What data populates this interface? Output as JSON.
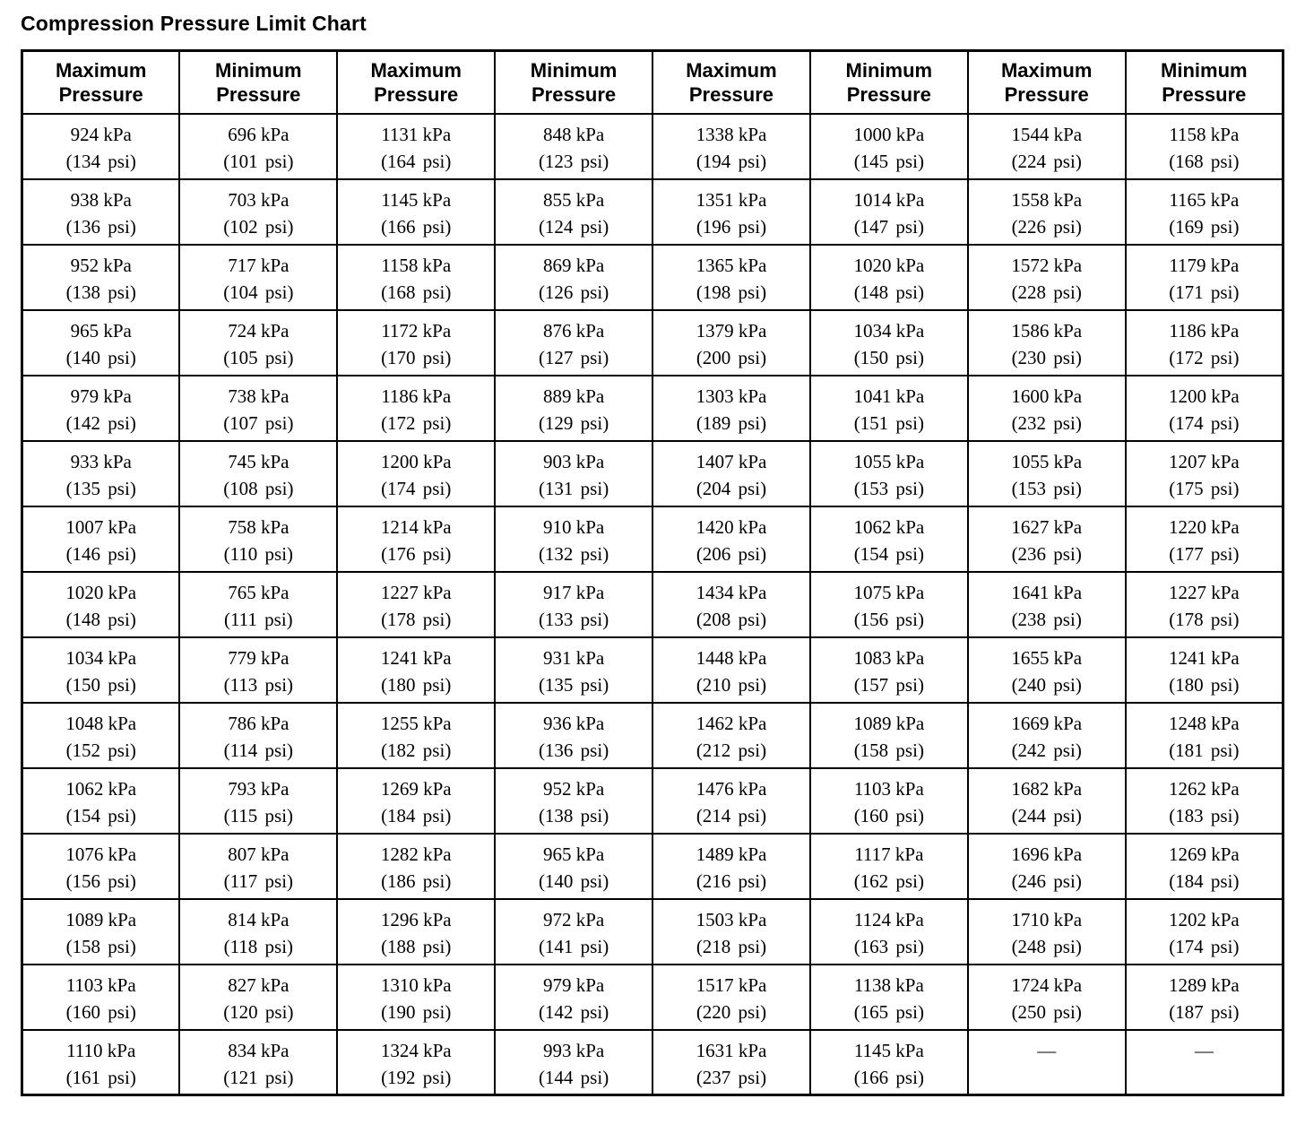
{
  "title": "Compression Pressure Limit Chart",
  "table": {
    "headers": [
      "Maximum Pressure",
      "Minimum Pressure",
      "Maximum Pressure",
      "Minimum Pressure",
      "Maximum Pressure",
      "Minimum Pressure",
      "Maximum Pressure",
      "Minimum Pressure"
    ],
    "rows": [
      [
        {
          "kpa": "924 kPa",
          "psi": "(134 psi)"
        },
        {
          "kpa": "696 kPa",
          "psi": "(101 psi)"
        },
        {
          "kpa": "1131 kPa",
          "psi": "(164 psi)"
        },
        {
          "kpa": "848 kPa",
          "psi": "(123 psi)"
        },
        {
          "kpa": "1338 kPa",
          "psi": "(194 psi)"
        },
        {
          "kpa": "1000 kPa",
          "psi": "(145 psi)"
        },
        {
          "kpa": "1544 kPa",
          "psi": "(224 psi)"
        },
        {
          "kpa": "1158 kPa",
          "psi": "(168 psi)"
        }
      ],
      [
        {
          "kpa": "938 kPa",
          "psi": "(136 psi)"
        },
        {
          "kpa": "703 kPa",
          "psi": "(102 psi)"
        },
        {
          "kpa": "1145 kPa",
          "psi": "(166 psi)"
        },
        {
          "kpa": "855 kPa",
          "psi": "(124 psi)"
        },
        {
          "kpa": "1351 kPa",
          "psi": "(196 psi)"
        },
        {
          "kpa": "1014 kPa",
          "psi": "(147 psi)"
        },
        {
          "kpa": "1558 kPa",
          "psi": "(226 psi)"
        },
        {
          "kpa": "1165 kPa",
          "psi": "(169 psi)"
        }
      ],
      [
        {
          "kpa": "952 kPa",
          "psi": "(138 psi)"
        },
        {
          "kpa": "717 kPa",
          "psi": "(104 psi)"
        },
        {
          "kpa": "1158 kPa",
          "psi": "(168 psi)"
        },
        {
          "kpa": "869 kPa",
          "psi": "(126 psi)"
        },
        {
          "kpa": "1365 kPa",
          "psi": "(198 psi)"
        },
        {
          "kpa": "1020 kPa",
          "psi": "(148 psi)"
        },
        {
          "kpa": "1572 kPa",
          "psi": "(228 psi)"
        },
        {
          "kpa": "1179 kPa",
          "psi": "(171 psi)"
        }
      ],
      [
        {
          "kpa": "965 kPa",
          "psi": "(140 psi)"
        },
        {
          "kpa": "724 kPa",
          "psi": "(105 psi)"
        },
        {
          "kpa": "1172 kPa",
          "psi": "(170 psi)"
        },
        {
          "kpa": "876 kPa",
          "psi": "(127 psi)"
        },
        {
          "kpa": "1379 kPa",
          "psi": "(200 psi)"
        },
        {
          "kpa": "1034 kPa",
          "psi": "(150 psi)"
        },
        {
          "kpa": "1586 kPa",
          "psi": "(230 psi)"
        },
        {
          "kpa": "1186 kPa",
          "psi": "(172 psi)"
        }
      ],
      [
        {
          "kpa": "979 kPa",
          "psi": "(142 psi)"
        },
        {
          "kpa": "738 kPa",
          "psi": "(107 psi)"
        },
        {
          "kpa": "1186 kPa",
          "psi": "(172 psi)"
        },
        {
          "kpa": "889 kPa",
          "psi": "(129 psi)"
        },
        {
          "kpa": "1303 kPa",
          "psi": "(189 psi)"
        },
        {
          "kpa": "1041 kPa",
          "psi": "(151 psi)"
        },
        {
          "kpa": "1600 kPa",
          "psi": "(232 psi)"
        },
        {
          "kpa": "1200 kPa",
          "psi": "(174 psi)"
        }
      ],
      [
        {
          "kpa": "933 kPa",
          "psi": "(135 psi)"
        },
        {
          "kpa": "745 kPa",
          "psi": "(108 psi)"
        },
        {
          "kpa": "1200 kPa",
          "psi": "(174 psi)"
        },
        {
          "kpa": "903 kPa",
          "psi": "(131 psi)"
        },
        {
          "kpa": "1407 kPa",
          "psi": "(204 psi)"
        },
        {
          "kpa": "1055 kPa",
          "psi": "(153 psi)"
        },
        {
          "kpa": "1055 kPa",
          "psi": "(153 psi)"
        },
        {
          "kpa": "1207 kPa",
          "psi": "(175 psi)"
        }
      ],
      [
        {
          "kpa": "1007 kPa",
          "psi": "(146 psi)"
        },
        {
          "kpa": "758 kPa",
          "psi": "(110 psi)"
        },
        {
          "kpa": "1214 kPa",
          "psi": "(176 psi)"
        },
        {
          "kpa": "910 kPa",
          "psi": "(132 psi)"
        },
        {
          "kpa": "1420 kPa",
          "psi": "(206 psi)"
        },
        {
          "kpa": "1062 kPa",
          "psi": "(154 psi)"
        },
        {
          "kpa": "1627 kPa",
          "psi": "(236 psi)"
        },
        {
          "kpa": "1220 kPa",
          "psi": "(177 psi)"
        }
      ],
      [
        {
          "kpa": "1020 kPa",
          "psi": "(148 psi)"
        },
        {
          "kpa": "765 kPa",
          "psi": "(111 psi)"
        },
        {
          "kpa": "1227 kPa",
          "psi": "(178 psi)"
        },
        {
          "kpa": "917 kPa",
          "psi": "(133 psi)"
        },
        {
          "kpa": "1434 kPa",
          "psi": "(208 psi)"
        },
        {
          "kpa": "1075 kPa",
          "psi": "(156 psi)"
        },
        {
          "kpa": "1641 kPa",
          "psi": "(238 psi)"
        },
        {
          "kpa": "1227 kPa",
          "psi": "(178 psi)"
        }
      ],
      [
        {
          "kpa": "1034 kPa",
          "psi": "(150 psi)"
        },
        {
          "kpa": "779 kPa",
          "psi": "(113 psi)"
        },
        {
          "kpa": "1241 kPa",
          "psi": "(180 psi)"
        },
        {
          "kpa": "931 kPa",
          "psi": "(135 psi)"
        },
        {
          "kpa": "1448 kPa",
          "psi": "(210 psi)"
        },
        {
          "kpa": "1083 kPa",
          "psi": "(157 psi)"
        },
        {
          "kpa": "1655 kPa",
          "psi": "(240 psi)"
        },
        {
          "kpa": "1241 kPa",
          "psi": "(180 psi)"
        }
      ],
      [
        {
          "kpa": "1048 kPa",
          "psi": "(152 psi)"
        },
        {
          "kpa": "786 kPa",
          "psi": "(114 psi)"
        },
        {
          "kpa": "1255 kPa",
          "psi": "(182 psi)"
        },
        {
          "kpa": "936 kPa",
          "psi": "(136 psi)"
        },
        {
          "kpa": "1462 kPa",
          "psi": "(212 psi)"
        },
        {
          "kpa": "1089 kPa",
          "psi": "(158 psi)"
        },
        {
          "kpa": "1669 kPa",
          "psi": "(242 psi)"
        },
        {
          "kpa": "1248 kPa",
          "psi": "(181 psi)"
        }
      ],
      [
        {
          "kpa": "1062 kPa",
          "psi": "(154 psi)"
        },
        {
          "kpa": "793 kPa",
          "psi": "(115 psi)"
        },
        {
          "kpa": "1269 kPa",
          "psi": "(184 psi)"
        },
        {
          "kpa": "952 kPa",
          "psi": "(138 psi)"
        },
        {
          "kpa": "1476 kPa",
          "psi": "(214 psi)"
        },
        {
          "kpa": "1103 kPa",
          "psi": "(160 psi)"
        },
        {
          "kpa": "1682 kPa",
          "psi": "(244 psi)"
        },
        {
          "kpa": "1262 kPa",
          "psi": "(183 psi)"
        }
      ],
      [
        {
          "kpa": "1076 kPa",
          "psi": "(156 psi)"
        },
        {
          "kpa": "807 kPa",
          "psi": "(117 psi)"
        },
        {
          "kpa": "1282 kPa",
          "psi": "(186 psi)"
        },
        {
          "kpa": "965 kPa",
          "psi": "(140 psi)"
        },
        {
          "kpa": "1489 kPa",
          "psi": "(216 psi)"
        },
        {
          "kpa": "1117 kPa",
          "psi": "(162 psi)"
        },
        {
          "kpa": "1696 kPa",
          "psi": "(246 psi)"
        },
        {
          "kpa": "1269 kPa",
          "psi": "(184 psi)"
        }
      ],
      [
        {
          "kpa": "1089 kPa",
          "psi": "(158 psi)"
        },
        {
          "kpa": "814 kPa",
          "psi": "(118 psi)"
        },
        {
          "kpa": "1296 kPa",
          "psi": "(188 psi)"
        },
        {
          "kpa": "972 kPa",
          "psi": "(141 psi)"
        },
        {
          "kpa": "1503 kPa",
          "psi": "(218 psi)"
        },
        {
          "kpa": "1124 kPa",
          "psi": "(163 psi)"
        },
        {
          "kpa": "1710 kPa",
          "psi": "(248 psi)"
        },
        {
          "kpa": "1202 kPa",
          "psi": "(174 psi)"
        }
      ],
      [
        {
          "kpa": "1103 kPa",
          "psi": "(160 psi)"
        },
        {
          "kpa": "827 kPa",
          "psi": "(120 psi)"
        },
        {
          "kpa": "1310 kPa",
          "psi": "(190 psi)"
        },
        {
          "kpa": "979 kPa",
          "psi": "(142 psi)"
        },
        {
          "kpa": "1517 kPa",
          "psi": "(220 psi)"
        },
        {
          "kpa": "1138 kPa",
          "psi": "(165 psi)"
        },
        {
          "kpa": "1724 kPa",
          "psi": "(250 psi)"
        },
        {
          "kpa": "1289 kPa",
          "psi": "(187 psi)"
        }
      ],
      [
        {
          "kpa": "1110 kPa",
          "psi": "(161 psi)"
        },
        {
          "kpa": "834 kPa",
          "psi": "(121 psi)"
        },
        {
          "kpa": "1324 kPa",
          "psi": "(192 psi)"
        },
        {
          "kpa": "993 kPa",
          "psi": "(144 psi)"
        },
        {
          "kpa": "1631 kPa",
          "psi": "(237 psi)"
        },
        {
          "kpa": "1145 kPa",
          "psi": "(166 psi)"
        },
        {
          "kpa": "—",
          "psi": ""
        },
        {
          "kpa": "—",
          "psi": ""
        }
      ]
    ]
  }
}
